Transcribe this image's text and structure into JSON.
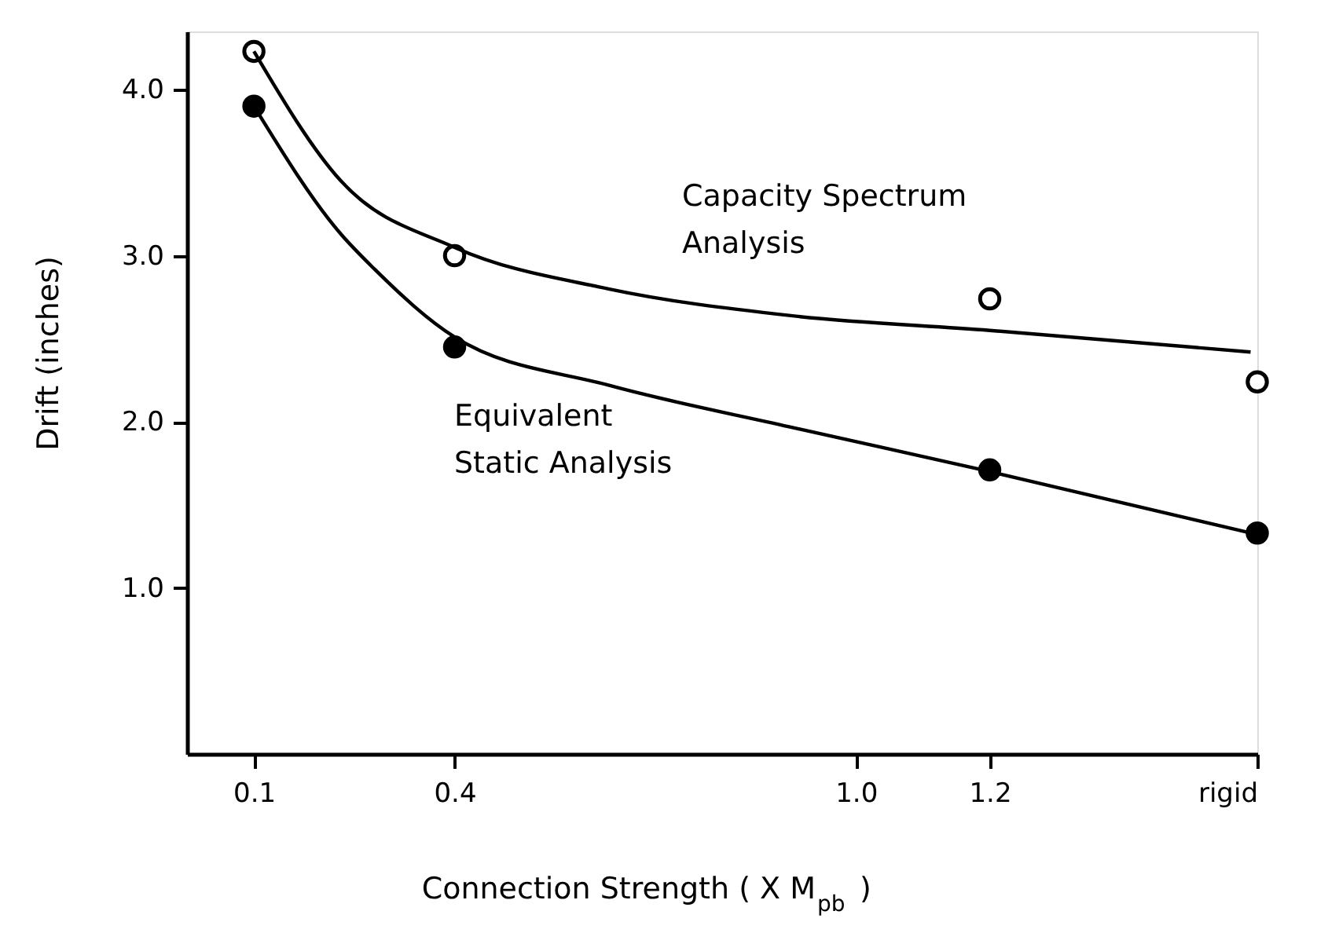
{
  "chart_data": {
    "type": "scatter",
    "xlabel": "Connection Strength ( X M$_{pb}$ )",
    "ylabel": "Drift (inches)",
    "xlim": [
      0,
      1.6
    ],
    "xticks": [
      0.1,
      0.4,
      {
        "value": 1.0,
        "label": "1.0"
      },
      1.2,
      {
        "value": 1.6,
        "label": "rigid"
      }
    ],
    "ylim": [
      0,
      4.35
    ],
    "yticks": [
      {
        "value": 1.0,
        "label": "1.0"
      },
      {
        "value": 2.0,
        "label": "2.0"
      },
      {
        "value": 3.0,
        "label": "3.0"
      },
      {
        "value": 4.0,
        "label": "4.0"
      }
    ],
    "grid": false,
    "legend": false,
    "series": [
      {
        "marker": "circle",
        "color": "#ffffff",
        "x": [
          0.1,
          0.4,
          1.2,
          1.6
        ],
        "values": [
          4.23,
          3.0,
          2.74,
          2.24
        ]
      },
      {
        "marker": "circle",
        "color": "#000000",
        "x": [
          0.1,
          0.4,
          1.2,
          1.6
        ],
        "values": [
          3.9,
          2.45,
          1.71,
          1.33
        ]
      },
      {
        "type": "line",
        "name": "Capacity Spectrum Analysis",
        "color": "#000000",
        "line_style": "solid",
        "x": [
          0.1,
          0.23,
          0.4,
          0.63,
          0.9,
          1.2,
          1.59
        ],
        "values": [
          4.23,
          3.45,
          3.05,
          2.8,
          2.64,
          2.55,
          2.42
        ]
      },
      {
        "type": "line",
        "name": "Equivalent Static Analysis",
        "color": "#000000",
        "line_style": "solid",
        "x": [
          0.1,
          0.23,
          0.28,
          0.4,
          0.63,
          0.9,
          1.2,
          1.59
        ],
        "values": [
          3.9,
          3.13,
          2.92,
          2.51,
          2.22,
          1.97,
          1.7,
          1.33
        ]
      }
    ]
  }
}
